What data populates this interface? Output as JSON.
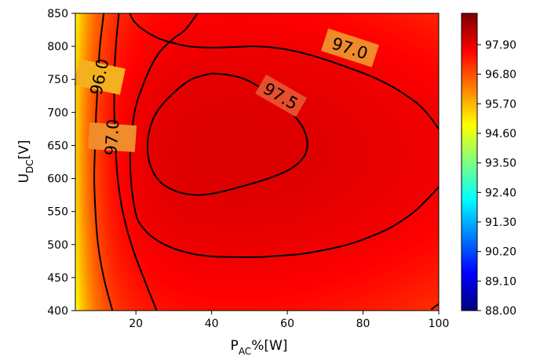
{
  "chart_data": {
    "type": "heatmap",
    "title": "",
    "xlabel": {
      "main": "P",
      "sub": "AC",
      "rest": "%[W]"
    },
    "ylabel": {
      "main": "U",
      "sub": "DC",
      "rest": "[V]"
    },
    "xlim": [
      4,
      100
    ],
    "ylim": [
      400,
      850
    ],
    "xticks": [
      20,
      40,
      60,
      80,
      100
    ],
    "yticks": [
      400,
      450,
      500,
      550,
      600,
      650,
      700,
      750,
      800,
      850
    ],
    "colorbar": {
      "vmin": 88.0,
      "vmax": 98.8,
      "ticks": [
        "97.90",
        "96.80",
        "95.70",
        "94.60",
        "93.50",
        "92.40",
        "91.30",
        "90.20",
        "89.10",
        "88.00"
      ],
      "colormap": "jet"
    },
    "contours": [
      {
        "level": 96.0,
        "label": "96.0",
        "points": [
          [
            11.5,
            850
          ],
          [
            10.5,
            800
          ],
          [
            10.0,
            750
          ],
          [
            9.5,
            700
          ],
          [
            9.2,
            650
          ],
          [
            9.0,
            600
          ],
          [
            9.3,
            550
          ],
          [
            10.0,
            500
          ],
          [
            11.5,
            450
          ],
          [
            13.8,
            400
          ]
        ]
      },
      {
        "level": 97.0,
        "label": "97.0",
        "points": [
          [
            18.4,
            850
          ],
          [
            19.5,
            838
          ],
          [
            22,
            825
          ],
          [
            26,
            812
          ],
          [
            30,
            805
          ],
          [
            34,
            800
          ],
          [
            40,
            798
          ],
          [
            46,
            799
          ],
          [
            52,
            800
          ],
          [
            58,
            797
          ],
          [
            64,
            790
          ],
          [
            70,
            780
          ],
          [
            76,
            768
          ],
          [
            82,
            755
          ],
          [
            88,
            738
          ],
          [
            94,
            715
          ],
          [
            97,
            698
          ],
          [
            100,
            675
          ]
        ]
      },
      {
        "level": 97.0,
        "label": "97.0",
        "points": [
          [
            15.5,
            850
          ],
          [
            14.7,
            800
          ],
          [
            14.3,
            750
          ],
          [
            14.3,
            700
          ],
          [
            14.6,
            650
          ],
          [
            15.2,
            600
          ],
          [
            16.5,
            550
          ],
          [
            18.8,
            500
          ],
          [
            22,
            450
          ],
          [
            25.5,
            400
          ]
        ]
      },
      {
        "level": 97.0,
        "label": "",
        "points": [
          [
            100,
            587
          ],
          [
            94,
            552
          ],
          [
            88,
            528
          ],
          [
            82,
            512
          ],
          [
            76,
            500
          ],
          [
            70,
            492
          ],
          [
            64,
            486
          ],
          [
            58,
            483
          ],
          [
            52,
            481
          ],
          [
            46,
            481
          ],
          [
            40,
            482
          ],
          [
            35,
            486
          ],
          [
            30,
            494
          ],
          [
            26,
            505
          ],
          [
            23,
            518
          ],
          [
            20.5,
            537
          ],
          [
            19.5,
            560
          ],
          [
            18.8,
            590
          ],
          [
            18.5,
            620
          ],
          [
            18.6,
            650
          ],
          [
            19.1,
            680
          ],
          [
            20,
            710
          ],
          [
            21.8,
            740
          ],
          [
            24,
            770
          ],
          [
            26.5,
            793
          ],
          [
            30,
            812
          ],
          [
            33,
            825
          ],
          [
            36.3,
            850
          ]
        ]
      },
      {
        "level": 97.5,
        "label": "97.5",
        "points": [
          [
            40,
            759
          ],
          [
            44,
            757
          ],
          [
            48,
            752
          ],
          [
            51,
            744
          ],
          [
            54,
            733
          ],
          [
            57.5,
            718
          ],
          [
            61,
            700
          ],
          [
            64,
            678
          ],
          [
            65.3,
            655
          ],
          [
            64.5,
            634
          ],
          [
            61,
            615
          ],
          [
            55,
            600
          ],
          [
            48,
            588
          ],
          [
            41,
            578
          ],
          [
            36,
            575
          ],
          [
            31,
            580
          ],
          [
            27,
            592
          ],
          [
            24.5,
            610
          ],
          [
            23.2,
            635
          ],
          [
            23.2,
            660
          ],
          [
            24.5,
            690
          ],
          [
            27,
            712
          ],
          [
            31,
            735
          ],
          [
            35,
            751
          ],
          [
            40,
            759
          ]
        ]
      },
      {
        "level": 97.9,
        "label": "",
        "points": [
          [
            98,
            402
          ],
          [
            99,
            406
          ],
          [
            100,
            410
          ]
        ]
      }
    ]
  }
}
